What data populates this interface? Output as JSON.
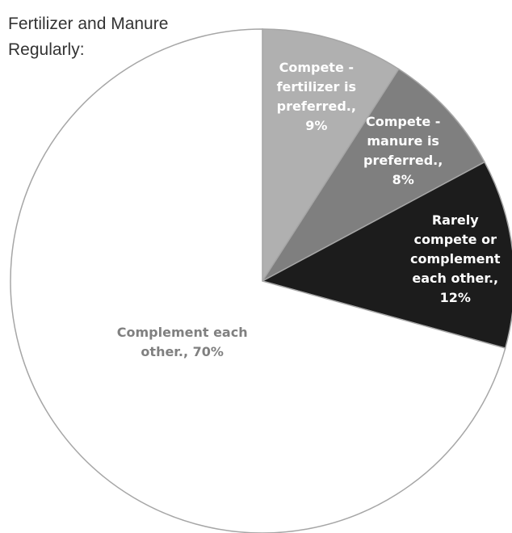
{
  "chart_data": {
    "type": "pie",
    "title": "Fertilizer and Manure Regularly:",
    "labels": [
      "Compete - fertilizer is preferred., 9%",
      "Compete - manure is preferred., 8%",
      "Rarely compete or complement each other., 12%",
      "Complement each other., 70%"
    ],
    "values": [
      9,
      8,
      12,
      70
    ],
    "colors": [
      "#b0b0b0",
      "#7f7f7f",
      "#1c1c1c",
      "#ffffff"
    ],
    "label_colors": [
      "#ffffff",
      "#ffffff",
      "#ffffff",
      "#808080"
    ]
  }
}
